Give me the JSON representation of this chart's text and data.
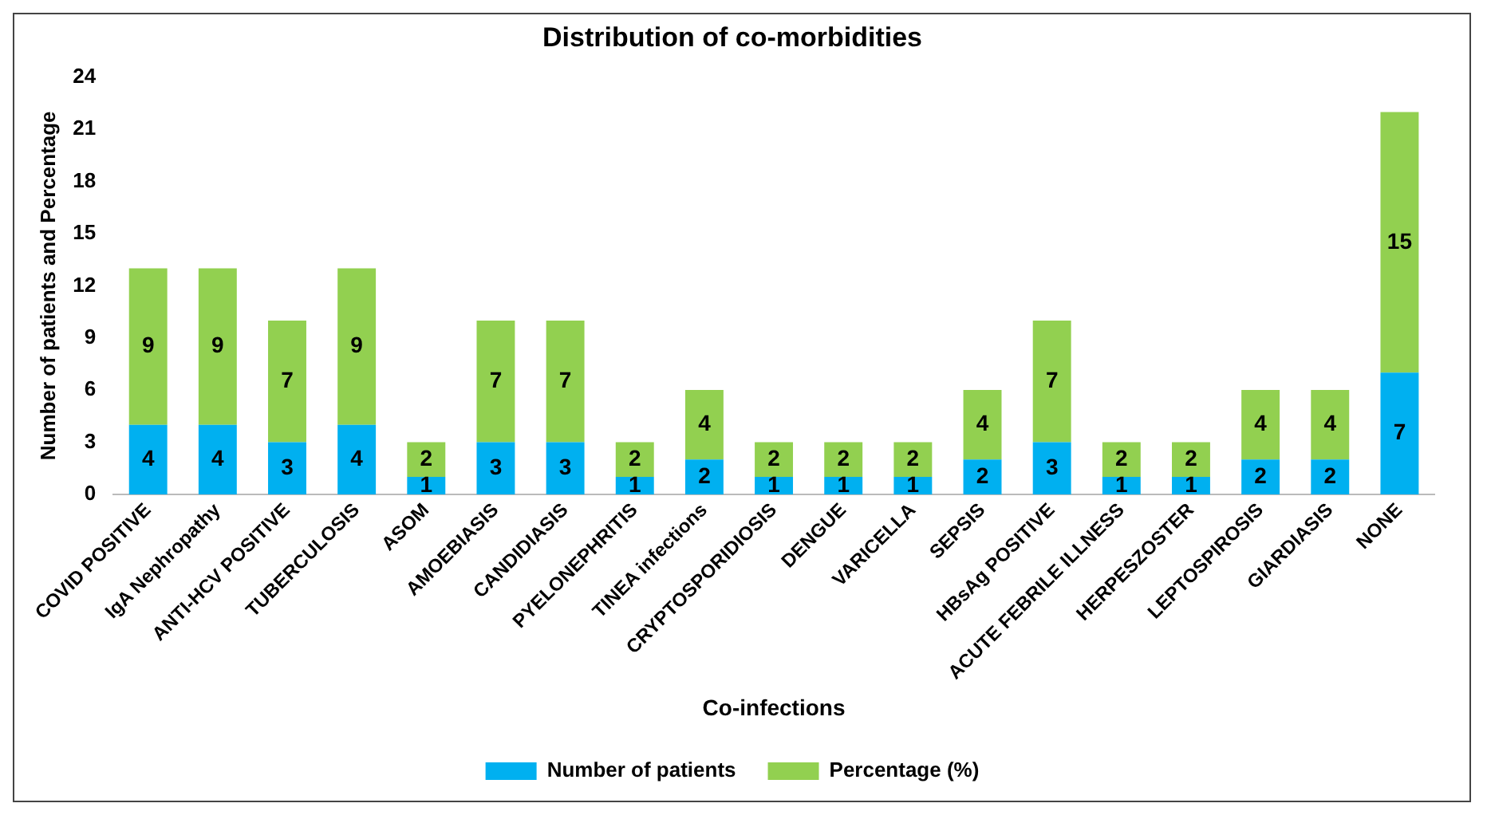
{
  "chart_data": {
    "type": "bar",
    "title": "Distribution of co-morbidities",
    "xlabel": "Co-infections",
    "ylabel": "Number of patients and Percentage",
    "categories": [
      "COVID POSITIVE",
      "IgA Nephropathy",
      "ANTI-HCV POSITIVE",
      "TUBERCULOSIS",
      "ASOM",
      "AMOEBIASIS",
      "CANDIDIASIS",
      "PYELONEPHRITIS",
      "TINEA infections",
      "CRYPTOSPORIDIOSIS",
      "DENGUE",
      "VARICELLA",
      "SEPSIS",
      "HBsAg POSITIVE",
      "ACUTE FEBRILE ILLNESS",
      "HERPESZOSTER",
      "LEPTOSPIROSIS",
      "GIARDIASIS",
      "NONE"
    ],
    "series": [
      {
        "name": "Number of patients",
        "color": "#00b0f0",
        "values": [
          4,
          4,
          3,
          4,
          1,
          3,
          3,
          1,
          2,
          1,
          1,
          1,
          2,
          3,
          1,
          1,
          2,
          2,
          7
        ]
      },
      {
        "name": "Percentage (%)",
        "color": "#92d050",
        "values": [
          9,
          9,
          7,
          9,
          2,
          7,
          7,
          2,
          4,
          2,
          2,
          2,
          4,
          7,
          2,
          2,
          4,
          4,
          15
        ]
      }
    ],
    "stacked": true,
    "ylim": [
      0,
      24
    ],
    "yticks": [
      0,
      3,
      6,
      9,
      12,
      15,
      18,
      21,
      24
    ],
    "grid": false,
    "legend": "bottom",
    "data_labels": true
  }
}
